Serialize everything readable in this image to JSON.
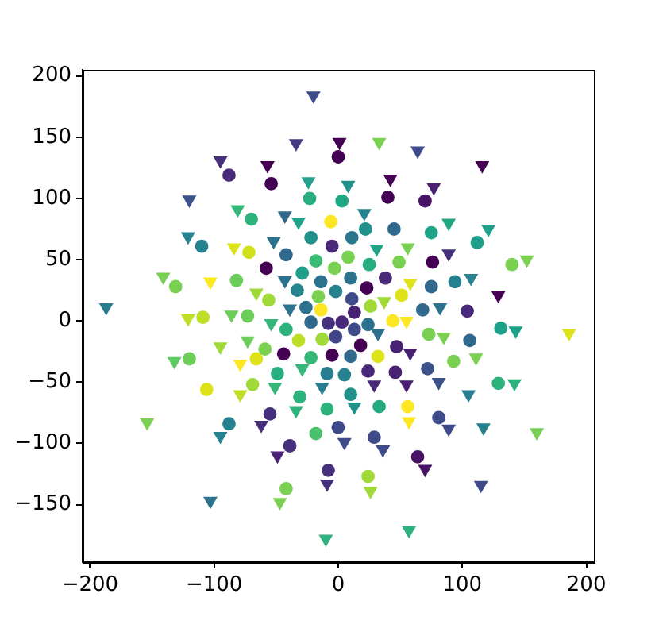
{
  "chart_data": {
    "type": "scatter",
    "xlim": [
      -206,
      206
    ],
    "ylim": [
      -197,
      205
    ],
    "xticks": [
      -200,
      -100,
      0,
      100,
      200
    ],
    "yticks": [
      -150,
      -100,
      -50,
      0,
      50,
      100,
      150,
      200
    ],
    "grid": false,
    "legend": false,
    "series": [
      {
        "marker": "circle",
        "x": [
          -88,
          -54,
          0,
          -23,
          -70,
          -22,
          -6,
          -110,
          -42,
          -5,
          -72,
          -58,
          -18,
          -131,
          -82,
          -29,
          -14,
          -3,
          -56,
          -33,
          -16,
          -26,
          -14,
          -109,
          -73,
          -22,
          40,
          70,
          3,
          22,
          45,
          11,
          75,
          112,
          49,
          25,
          76,
          8,
          140,
          10,
          38,
          51,
          94,
          75,
          23,
          -2,
          11,
          26,
          68,
          104,
          13,
          44,
          131,
          -42,
          -32,
          -13,
          -8,
          -2,
          -59,
          -120,
          -66,
          -44,
          -22,
          -5,
          -49,
          -9,
          -106,
          -69,
          -31,
          -9,
          -55,
          -88,
          -18,
          0,
          -39,
          -8,
          -42,
          3,
          24,
          13,
          73,
          106,
          18,
          10,
          32,
          47,
          93,
          24,
          46,
          72,
          129,
          5,
          10,
          33,
          56,
          81,
          29,
          64,
          24
        ],
        "values": [
          119,
          112,
          134,
          100,
          83,
          68,
          81,
          61,
          54,
          61,
          56,
          43,
          49,
          28,
          33,
          39,
          32,
          43,
          17,
          25,
          20,
          11,
          9,
          3,
          4,
          -1,
          101,
          98,
          98,
          75,
          75,
          68,
          72,
          64,
          48,
          46,
          48,
          52,
          46,
          35,
          35,
          21,
          32,
          28,
          27,
          24,
          18,
          12,
          9,
          8,
          7,
          0,
          -6,
          -7,
          -16,
          -15,
          -2,
          -13,
          -23,
          -31,
          -31,
          -27,
          -30,
          -28,
          -43,
          -43,
          -56,
          -52,
          -62,
          -72,
          -76,
          -84,
          -92,
          -87,
          -102,
          -122,
          -137,
          -1,
          -3,
          -7,
          -11,
          -16,
          -20,
          -29,
          -29,
          -21,
          -33,
          -41,
          -42,
          -39,
          -51,
          -44,
          -60,
          -70,
          -70,
          -79,
          -95,
          -111,
          -127
        ],
        "colors": [
          "#472c7a",
          "#440154",
          "#440154",
          "#29af7f",
          "#2db27d",
          "#21918c",
          "#fde725",
          "#26828e",
          "#31688e",
          "#482878",
          "#d0e11c",
          "#440154",
          "#3bbb75",
          "#7ad151",
          "#6ccd5a",
          "#1f9e89",
          "#2c728e",
          "#7ad151",
          "#a0da39",
          "#25848e",
          "#7ad151",
          "#2c728e",
          "#fde725",
          "#bddf26",
          "#6ccd5a",
          "#31688e",
          "#440154",
          "#471365",
          "#22a785",
          "#21918c",
          "#31688e",
          "#2a788e",
          "#20a486",
          "#1f9e89",
          "#7ad151",
          "#26ad81",
          "#440154",
          "#7ad151",
          "#7ad151",
          "#2c728e",
          "#482878",
          "#dde318",
          "#26828e",
          "#31688e",
          "#440154",
          "#26828e",
          "#3e4a89",
          "#a0da39",
          "#31688e",
          "#482878",
          "#482173",
          "#fde725",
          "#1fa088",
          "#2db27d",
          "#bddf26",
          "#a0da39",
          "#46307e",
          "#414487",
          "#7ad151",
          "#6ccd5a",
          "#dde318",
          "#440154",
          "#35b779",
          "#440154",
          "#29af7f",
          "#287d8e",
          "#dde318",
          "#a0da39",
          "#2db27d",
          "#2db27d",
          "#46307e",
          "#26828e",
          "#4ac16d",
          "#3e4a89",
          "#46307e",
          "#46307e",
          "#7ad151",
          "#482878",
          "#2c728e",
          "#3e4a89",
          "#7ad151",
          "#31688e",
          "#440154",
          "#31688e",
          "#dde318",
          "#482173",
          "#7ad151",
          "#482878",
          "#482173",
          "#3b528b",
          "#2db27d",
          "#26828e",
          "#21918c",
          "#25ab82",
          "#fde725",
          "#3e4a89",
          "#3e4a89",
          "#471365",
          "#a0da39"
        ]
      },
      {
        "marker": "triangle",
        "x": [
          -20,
          -34,
          -95,
          -57,
          1,
          -24,
          -120,
          -81,
          -43,
          -32,
          -121,
          -52,
          -84,
          -141,
          -103,
          -43,
          -66,
          -39,
          -187,
          -121,
          -86,
          -54,
          33,
          64,
          116,
          42,
          77,
          8,
          21,
          89,
          121,
          56,
          31,
          89,
          152,
          58,
          107,
          129,
          37,
          82,
          55,
          143,
          -95,
          -73,
          -132,
          -79,
          -29,
          -51,
          -13,
          -79,
          -34,
          -62,
          -95,
          -154,
          -49,
          -9,
          -47,
          -103,
          -10,
          32,
          85,
          186,
          58,
          111,
          29,
          55,
          81,
          105,
          142,
          13,
          57,
          89,
          117,
          160,
          5,
          36,
          70,
          26,
          115,
          57
        ],
        "values": [
          184,
          145,
          131,
          127,
          146,
          114,
          99,
          91,
          86,
          81,
          69,
          65,
          60,
          36,
          32,
          33,
          23,
          10,
          11,
          2,
          5,
          -2,
          146,
          139,
          127,
          116,
          109,
          111,
          88,
          80,
          75,
          60,
          59,
          55,
          50,
          31,
          35,
          21,
          16,
          11,
          0,
          -8,
          -21,
          -16,
          -33,
          -35,
          -39,
          -54,
          -54,
          -60,
          -73,
          -85,
          -94,
          -83,
          -110,
          -133,
          -148,
          -147,
          -178,
          -10,
          -13,
          -10,
          -26,
          -30,
          -52,
          -52,
          -50,
          -60,
          -51,
          -70,
          -82,
          -88,
          -87,
          -91,
          -99,
          -105,
          -121,
          -139,
          -134,
          -171
        ],
        "colors": [
          "#3e4c8a",
          "#443983",
          "#46307e",
          "#440154",
          "#440154",
          "#25a18e",
          "#3b528b",
          "#35b779",
          "#31688e",
          "#20a486",
          "#26828e",
          "#2c728e",
          "#dde318",
          "#75d054",
          "#fde725",
          "#2c728e",
          "#a0da39",
          "#2c728e",
          "#287d8e",
          "#bddf26",
          "#6ccd5a",
          "#35b779",
          "#7ad151",
          "#3e4a89",
          "#440154",
          "#440154",
          "#482173",
          "#21918c",
          "#26828e",
          "#22a785",
          "#1f9e89",
          "#7ad151",
          "#20a486",
          "#46307e",
          "#7ad151",
          "#dde318",
          "#26828e",
          "#440154",
          "#a0da39",
          "#2c728e",
          "#fde725",
          "#1fa088",
          "#a0da39",
          "#6ccd5a",
          "#5ec962",
          "#fde725",
          "#35b779",
          "#35b779",
          "#287d8e",
          "#bddf26",
          "#2db27d",
          "#46307e",
          "#26828e",
          "#7ad151",
          "#482173",
          "#46307e",
          "#7ad151",
          "#2c728e",
          "#2db27d",
          "#2c728e",
          "#7ad151",
          "#dde318",
          "#482173",
          "#7ad151",
          "#482878",
          "#482173",
          "#3b528b",
          "#287d8e",
          "#2db27d",
          "#21918c",
          "#fde725",
          "#3e4a89",
          "#26828e",
          "#7ad151",
          "#3e4a89",
          "#3e4a89",
          "#471365",
          "#a0da39",
          "#3e4a89",
          "#2db27d"
        ]
      }
    ]
  }
}
